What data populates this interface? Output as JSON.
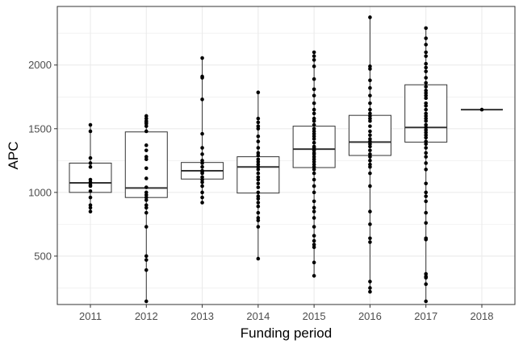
{
  "chart_data": {
    "type": "boxplot",
    "xlabel": "Funding period",
    "ylabel": "APC",
    "ylim": [
      120,
      2460
    ],
    "yticks": [
      500,
      1000,
      1500,
      2000
    ],
    "grid": true,
    "theme": "black-and-white",
    "categories": [
      "2011",
      "2012",
      "2013",
      "2014",
      "2015",
      "2016",
      "2017",
      "2018"
    ],
    "boxes": [
      {
        "category": "2011",
        "q1": 1000,
        "median": 1075,
        "q3": 1230,
        "whisker_low": 850,
        "whisker_high": 1530
      },
      {
        "category": "2012",
        "q1": 960,
        "median": 1035,
        "q3": 1475,
        "whisker_low": 145,
        "whisker_high": 1600
      },
      {
        "category": "2013",
        "q1": 1105,
        "median": 1170,
        "q3": 1235,
        "whisker_low": 915,
        "whisker_high": 2055
      },
      {
        "category": "2014",
        "q1": 995,
        "median": 1200,
        "q3": 1280,
        "whisker_low": 480,
        "whisker_high": 1785
      },
      {
        "category": "2015",
        "q1": 1195,
        "median": 1340,
        "q3": 1520,
        "whisker_low": 345,
        "whisker_high": 2100
      },
      {
        "category": "2016",
        "q1": 1290,
        "median": 1395,
        "q3": 1605,
        "whisker_low": 220,
        "whisker_high": 2375
      },
      {
        "category": "2017",
        "q1": 1395,
        "median": 1510,
        "q3": 1845,
        "whisker_low": 145,
        "whisker_high": 2290
      },
      {
        "category": "2018",
        "q1": 1650,
        "median": 1650,
        "q3": 1650,
        "whisker_low": 1650,
        "whisker_high": 1650
      }
    ],
    "points": [
      {
        "category": "2011",
        "values": [
          1530,
          1480,
          1270,
          1230,
          1200,
          1100,
          1080,
          1060,
          1050,
          1010,
          960,
          900,
          880,
          850
        ]
      },
      {
        "category": "2012",
        "values": [
          1600,
          1580,
          1560,
          1550,
          1540,
          1520,
          1480,
          1370,
          1330,
          1280,
          1260,
          1190,
          1110,
          1040,
          1000,
          980,
          960,
          940,
          900,
          880,
          840,
          730,
          500,
          470,
          390,
          145
        ]
      },
      {
        "category": "2013",
        "values": [
          2055,
          1910,
          1900,
          1730,
          1460,
          1350,
          1300,
          1250,
          1230,
          1200,
          1170,
          1160,
          1150,
          1120,
          1100,
          1080,
          1050,
          1000,
          960,
          920
        ]
      },
      {
        "category": "2014",
        "values": [
          1785,
          1580,
          1550,
          1520,
          1500,
          1440,
          1400,
          1350,
          1310,
          1290,
          1260,
          1240,
          1220,
          1200,
          1180,
          1150,
          1120,
          1100,
          1070,
          1040,
          1000,
          970,
          950,
          920,
          890,
          840,
          800,
          780,
          730,
          480
        ]
      },
      {
        "category": "2015",
        "values": [
          2100,
          2070,
          2040,
          1990,
          1890,
          1810,
          1760,
          1700,
          1650,
          1620,
          1580,
          1560,
          1530,
          1500,
          1480,
          1460,
          1440,
          1420,
          1390,
          1360,
          1350,
          1330,
          1310,
          1300,
          1280,
          1260,
          1240,
          1220,
          1200,
          1180,
          1150,
          1100,
          1050,
          1000,
          930,
          880,
          850,
          800,
          730,
          660,
          620,
          590,
          570,
          450,
          345
        ]
      },
      {
        "category": "2016",
        "values": [
          2375,
          1990,
          1970,
          1880,
          1820,
          1760,
          1700,
          1650,
          1620,
          1600,
          1580,
          1560,
          1520,
          1480,
          1450,
          1420,
          1400,
          1380,
          1360,
          1330,
          1300,
          1280,
          1250,
          1220,
          1200,
          1150,
          1050,
          850,
          750,
          640,
          610,
          300,
          250,
          220
        ]
      },
      {
        "category": "2017",
        "values": [
          2290,
          2210,
          2160,
          2100,
          2070,
          2010,
          1980,
          1950,
          1900,
          1860,
          1830,
          1800,
          1780,
          1760,
          1740,
          1700,
          1680,
          1650,
          1620,
          1600,
          1580,
          1560,
          1530,
          1510,
          1490,
          1470,
          1450,
          1430,
          1400,
          1380,
          1350,
          1310,
          1280,
          1230,
          1180,
          1070,
          1000,
          970,
          930,
          840,
          760,
          640,
          630,
          360,
          340,
          330,
          280,
          145
        ]
      },
      {
        "category": "2018",
        "values": [
          1650
        ]
      }
    ],
    "colors": {
      "background": "#ffffff",
      "panel_border": "#333333",
      "grid": "#ebebeb",
      "box_line": "#333333",
      "point": "#000000"
    }
  }
}
